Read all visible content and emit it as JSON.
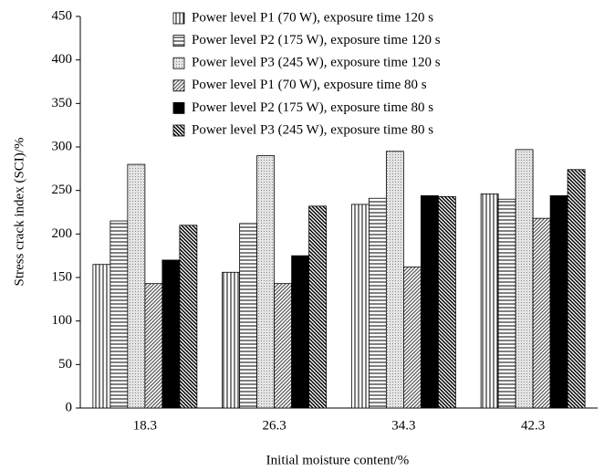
{
  "chart_data": {
    "type": "bar",
    "x_label": "Initial moisture content/%",
    "y_label": "Stress crack index (SCI)/%",
    "categories": [
      "18.3",
      "26.3",
      "34.3",
      "42.3"
    ],
    "series": [
      {
        "name": "Power level P1 (70 W), exposure time 120 s",
        "color": "#000000",
        "pattern": "vertical",
        "values": [
          165,
          156,
          234,
          246
        ]
      },
      {
        "name": "Power level P2 (175 W), exposure time 120 s",
        "color": "#000000",
        "pattern": "horizontal",
        "values": [
          215,
          212,
          241,
          240
        ]
      },
      {
        "name": "Power level P3 (245 W), exposure time 120 s",
        "color": "#000000",
        "pattern": "dots",
        "values": [
          280,
          290,
          295,
          297
        ]
      },
      {
        "name": "Power level P1 (70 W), exposure time 80 s",
        "color": "#555555",
        "pattern": "diagonal",
        "values": [
          143,
          143,
          162,
          218
        ]
      },
      {
        "name": "Power level P2 (175 W), exposure time 80 s",
        "color": "#000000",
        "pattern": "solid",
        "values": [
          170,
          175,
          244,
          244
        ]
      },
      {
        "name": "Power level P3 (245 W), exposure time 80 s",
        "color": "#000000",
        "pattern": "backdiagonal",
        "values": [
          210,
          232,
          243,
          274
        ]
      }
    ],
    "ylim": [
      0,
      450
    ],
    "yticks": [
      0,
      50,
      100,
      150,
      200,
      250,
      300,
      350,
      400,
      450
    ],
    "legend": "top"
  }
}
